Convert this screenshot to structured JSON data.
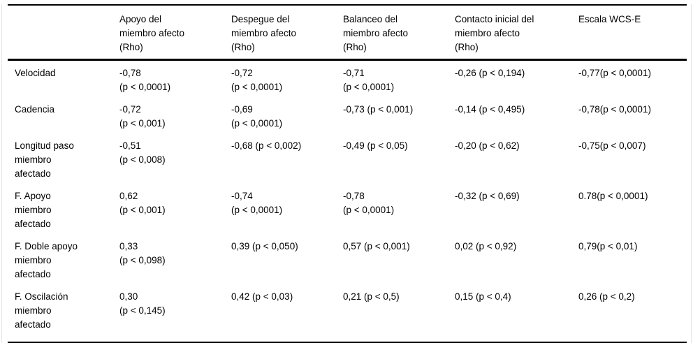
{
  "table": {
    "column_headers": [
      "",
      "Apoyo del\nmiembro afecto\n(Rho)",
      "Despegue del\nmiembro afecto\n(Rho)",
      "Balanceo del\nmiembro afecto\n(Rho)",
      "Contacto inicial del\nmiembro afecto\n(Rho)",
      "Escala WCS-E"
    ],
    "rows": [
      {
        "label": "Velocidad",
        "cells": [
          "-0,78\n(p < 0,0001)",
          "-0,72\n(p < 0,0001)",
          "-0,71\n(p < 0,0001)",
          "-0,26 (p < 0,194)",
          "-0,77(p < 0,0001)"
        ]
      },
      {
        "label": "Cadencia",
        "cells": [
          "-0,72\n(p < 0,001)",
          "-0,69\n(p < 0,0001)",
          "-0,73 (p < 0,001)",
          "-0,14 (p < 0,495)",
          "-0,78(p < 0,0001)"
        ]
      },
      {
        "label": "Longitud paso\nmiembro\nafectado",
        "cells": [
          "-0,51\n(p < 0,008)",
          "-0,68 (p < 0,002)",
          "-0,49 (p < 0,05)",
          "-0,20 (p < 0,62)",
          "-0,75(p < 0,007)"
        ]
      },
      {
        "label": "F. Apoyo\nmiembro\nafectado",
        "cells": [
          "0,62\n(p < 0,001)",
          "-0,74\n(p < 0,0001)",
          "-0,78\n(p < 0,0001)",
          "-0,32 (p < 0,69)",
          "0.78(p < 0,0001)"
        ]
      },
      {
        "label": "F. Doble apoyo\nmiembro\nafectado",
        "cells": [
          "0,33\n(p < 0,098)",
          "0,39 (p < 0,050)",
          "0,57 (p < 0,001)",
          "0,02 (p < 0,92)",
          "0,79(p < 0,01)"
        ]
      },
      {
        "label": "F. Oscilación\nmiembro\nafectado",
        "cells": [
          "0,30\n(p < 0,145)",
          "0,42 (p < 0,03)",
          "0,21 (p < 0,5)",
          "0,15 (p < 0,4)",
          "0,26 (p < 0,2)"
        ]
      }
    ]
  }
}
